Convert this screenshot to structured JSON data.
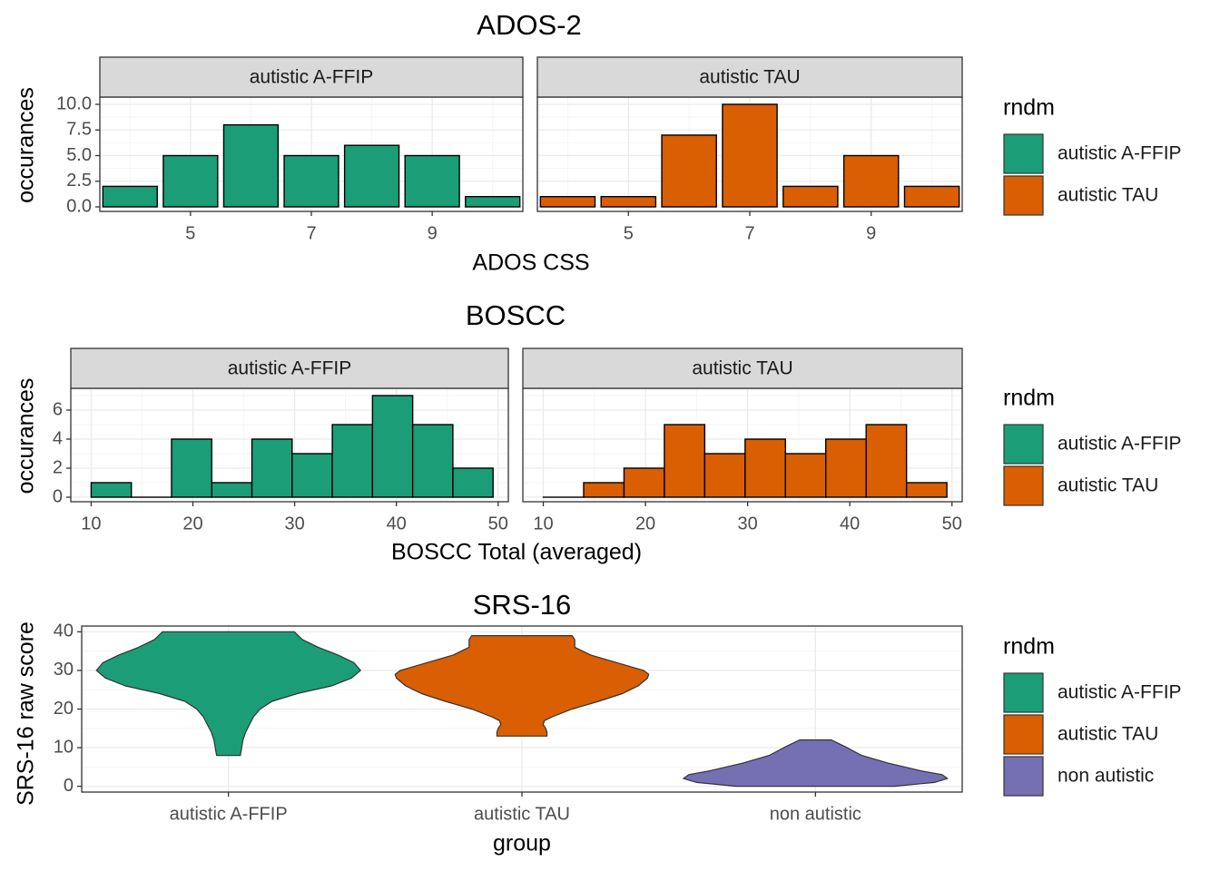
{
  "colors": {
    "autistic_affip": "#1b9e77",
    "autistic_tau": "#d95f02",
    "non_autistic": "#7570b3",
    "strip_fill": "#d9d9d9",
    "grid_major": "#ebebeb",
    "grid_minor": "#f5f5f5",
    "panel_border": "#333333",
    "axis_text": "#4d4d4d"
  },
  "chart_data": [
    {
      "id": "ados",
      "type": "bar",
      "title": "ADOS-2",
      "xlabel": "ADOS CSS",
      "ylabel": "occurances",
      "xlim": [
        3.5,
        10.5
      ],
      "ylim": [
        0,
        10
      ],
      "xticks": [
        5,
        7,
        9
      ],
      "yticks": [
        0,
        2.5,
        5,
        7.5,
        10
      ],
      "ytick_labels": [
        "0.0",
        "2.5",
        "5.0",
        "7.5",
        "10.0"
      ],
      "panels": [
        {
          "strip": "autistic A-FFIP",
          "group": "autistic_affip",
          "x": [
            4,
            5,
            6,
            7,
            8,
            9,
            10
          ],
          "values": [
            2,
            5,
            8,
            5,
            6,
            5,
            1
          ]
        },
        {
          "strip": "autistic TAU",
          "group": "autistic_tau",
          "x": [
            4,
            5,
            6,
            7,
            8,
            9,
            10
          ],
          "values": [
            1,
            1,
            7,
            10,
            2,
            5,
            2
          ]
        }
      ],
      "legend": {
        "title": "rndm",
        "items": [
          {
            "label": "autistic A-FFIP",
            "group": "autistic_affip"
          },
          {
            "label": "autistic TAU",
            "group": "autistic_tau"
          }
        ]
      }
    },
    {
      "id": "boscc",
      "type": "bar",
      "title": "BOSCC",
      "xlabel": "BOSCC Total (averaged)",
      "ylabel": "occurances",
      "xlim": [
        8,
        51
      ],
      "ylim": [
        0,
        7
      ],
      "xticks": [
        10,
        20,
        30,
        40,
        50
      ],
      "yticks": [
        0,
        2,
        4,
        6
      ],
      "ytick_labels": [
        "0",
        "2",
        "4",
        "6"
      ],
      "bin_width": 3.95,
      "panels": [
        {
          "strip": "autistic A-FFIP",
          "group": "autistic_affip",
          "bin_starts": [
            10,
            13.95,
            17.9,
            21.85,
            25.8,
            29.75,
            33.7,
            37.65,
            41.6,
            45.55
          ],
          "values": [
            1,
            0,
            4,
            1,
            4,
            3,
            5,
            7,
            5,
            2
          ]
        },
        {
          "strip": "autistic TAU",
          "group": "autistic_tau",
          "bin_starts": [
            10,
            13.95,
            17.9,
            21.85,
            25.8,
            29.75,
            33.7,
            37.65,
            41.6,
            45.55
          ],
          "values": [
            0,
            1,
            2,
            5,
            3,
            4,
            3,
            4,
            5,
            1
          ]
        }
      ],
      "legend": {
        "title": "rndm",
        "items": [
          {
            "label": "autistic A-FFIP",
            "group": "autistic_affip"
          },
          {
            "label": "autistic TAU",
            "group": "autistic_tau"
          }
        ]
      }
    },
    {
      "id": "srs",
      "type": "violin",
      "title": "SRS-16",
      "xlabel": "group",
      "ylabel": "SRS-16 raw score",
      "ylim": [
        -1.5,
        41.5
      ],
      "yticks": [
        0,
        10,
        20,
        30,
        40
      ],
      "categories": [
        "autistic A-FFIP",
        "autistic TAU",
        "non autistic"
      ],
      "violins": [
        {
          "category": "autistic A-FFIP",
          "group": "autistic_affip",
          "profile": [
            [
              8,
              0.09
            ],
            [
              10,
              0.1
            ],
            [
              12,
              0.11
            ],
            [
              14,
              0.13
            ],
            [
              16,
              0.16
            ],
            [
              18,
              0.19
            ],
            [
              20,
              0.24
            ],
            [
              22,
              0.33
            ],
            [
              24,
              0.52
            ],
            [
              26,
              0.78
            ],
            [
              28,
              0.93
            ],
            [
              30,
              1.0
            ],
            [
              32,
              0.95
            ],
            [
              34,
              0.83
            ],
            [
              36,
              0.68
            ],
            [
              38,
              0.56
            ],
            [
              40,
              0.5
            ]
          ]
        },
        {
          "category": "autistic TAU",
          "group": "autistic_tau",
          "profile": [
            [
              13,
              0.19
            ],
            [
              14,
              0.19
            ],
            [
              15,
              0.18
            ],
            [
              16,
              0.16
            ],
            [
              17,
              0.17
            ],
            [
              18,
              0.23
            ],
            [
              20,
              0.38
            ],
            [
              22,
              0.58
            ],
            [
              24,
              0.76
            ],
            [
              26,
              0.88
            ],
            [
              28,
              0.95
            ],
            [
              29,
              0.96
            ],
            [
              30,
              0.92
            ],
            [
              32,
              0.72
            ],
            [
              34,
              0.52
            ],
            [
              36,
              0.4
            ],
            [
              38,
              0.4
            ],
            [
              39,
              0.38
            ]
          ]
        },
        {
          "category": "non autistic",
          "group": "non_autistic",
          "profile": [
            [
              0,
              0.6
            ],
            [
              1,
              0.9
            ],
            [
              2,
              1.0
            ],
            [
              3,
              0.96
            ],
            [
              4,
              0.8
            ],
            [
              6,
              0.55
            ],
            [
              8,
              0.35
            ],
            [
              10,
              0.24
            ],
            [
              11,
              0.18
            ],
            [
              12,
              0.12
            ]
          ]
        }
      ],
      "legend": {
        "title": "rndm",
        "items": [
          {
            "label": "autistic A-FFIP",
            "group": "autistic_affip"
          },
          {
            "label": "autistic TAU",
            "group": "autistic_tau"
          },
          {
            "label": "non autistic",
            "group": "non_autistic"
          }
        ]
      }
    }
  ]
}
